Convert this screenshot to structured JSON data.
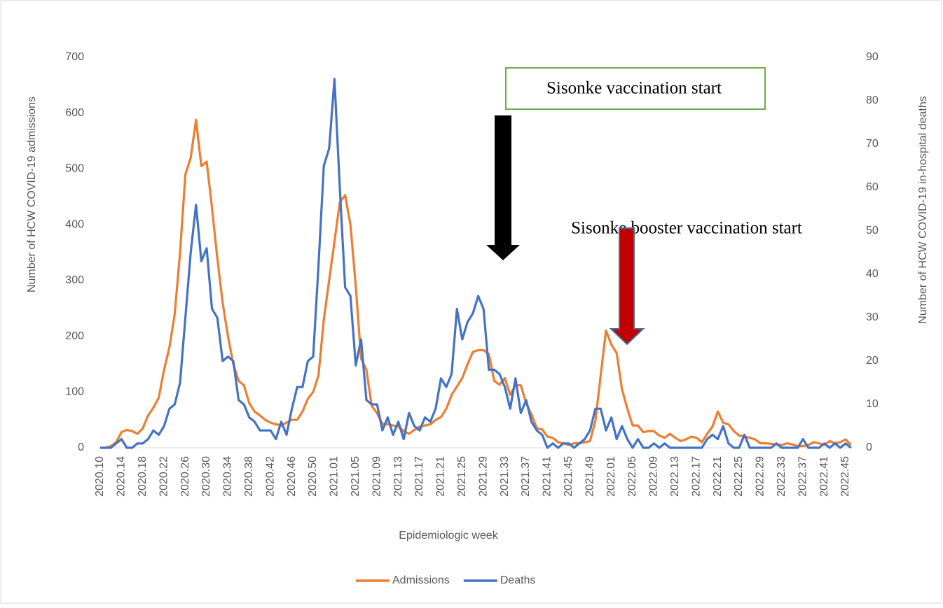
{
  "chart_data": {
    "type": "line",
    "y_label": "Number of HCW COVID-19 admissions",
    "y2_label": "Number of HCW COVID-19 in-hospital deaths",
    "x_label": "Epidemiologic week",
    "categories": [
      "2020.10",
      null,
      null,
      null,
      "2020.14",
      null,
      null,
      null,
      "2020.18",
      null,
      null,
      null,
      "2020.22",
      null,
      null,
      null,
      "2020.26",
      null,
      null,
      null,
      "2020.30",
      null,
      null,
      null,
      "2020.34",
      null,
      null,
      null,
      "2020.38",
      null,
      null,
      null,
      "2020.42",
      null,
      null,
      null,
      "2020.46",
      null,
      null,
      null,
      "2020.50",
      null,
      null,
      null,
      "2021.01",
      null,
      null,
      null,
      "2021.05",
      null,
      null,
      null,
      "2021.09",
      null,
      null,
      null,
      "2021.13",
      null,
      null,
      null,
      "2021.17",
      null,
      null,
      null,
      "2021.21",
      null,
      null,
      null,
      "2021.25",
      null,
      null,
      null,
      "2021.29",
      null,
      null,
      null,
      "2021.33",
      null,
      null,
      null,
      "2021.37",
      null,
      null,
      null,
      "2021.41",
      null,
      null,
      null,
      "2021.45",
      null,
      null,
      null,
      "2021.49",
      null,
      null,
      null,
      "2022.01",
      null,
      null,
      null,
      "2022.05",
      null,
      null,
      null,
      "2022.09",
      null,
      null,
      null,
      "2022.13",
      null,
      null,
      null,
      "2022.17",
      null,
      null,
      null,
      "2022.21",
      null,
      null,
      null,
      "2022.25",
      null,
      null,
      null,
      "2022.29",
      null,
      null,
      null,
      "2022.33",
      null,
      null,
      null,
      "2022.37",
      null,
      null,
      null,
      "2022.41",
      null,
      null,
      null,
      "2022.45",
      null
    ],
    "series": [
      {
        "name": "Admissions",
        "color": "#ed7d31",
        "axis": "y",
        "values": [
          0,
          0,
          3,
          10,
          28,
          32,
          30,
          25,
          35,
          58,
          72,
          90,
          140,
          180,
          240,
          350,
          490,
          520,
          588,
          505,
          513,
          430,
          340,
          260,
          200,
          150,
          120,
          112,
          80,
          65,
          58,
          50,
          45,
          42,
          40,
          45,
          50,
          50,
          65,
          88,
          100,
          130,
          230,
          300,
          370,
          440,
          453,
          400,
          290,
          160,
          140,
          75,
          62,
          43,
          42,
          40,
          38,
          30,
          25,
          32,
          38,
          40,
          42,
          50,
          55,
          70,
          95,
          110,
          125,
          150,
          172,
          175,
          175,
          168,
          120,
          113,
          125,
          95,
          112,
          112,
          80,
          60,
          35,
          33,
          20,
          18,
          10,
          8,
          5,
          8,
          8,
          10,
          12,
          48,
          130,
          210,
          185,
          170,
          105,
          70,
          40,
          40,
          28,
          30,
          30,
          22,
          18,
          25,
          18,
          12,
          15,
          20,
          18,
          10,
          25,
          38,
          65,
          45,
          42,
          30,
          22,
          20,
          18,
          15,
          8,
          8,
          7,
          6,
          5,
          8,
          6,
          3,
          3,
          5,
          10,
          8,
          5,
          12,
          8,
          10,
          15,
          5
        ]
      },
      {
        "name": "Deaths",
        "color": "#4472c4",
        "axis": "y2",
        "values": [
          0,
          0,
          0,
          1,
          2,
          0,
          0,
          1,
          1,
          2,
          4,
          3,
          5,
          9,
          10,
          15,
          30,
          45,
          56,
          43,
          46,
          32,
          30,
          20,
          21,
          20,
          11,
          10,
          7,
          6,
          4,
          4,
          4,
          2,
          6,
          3,
          9,
          14,
          14,
          20,
          21,
          42,
          65,
          69,
          85,
          60,
          37,
          35,
          19,
          25,
          11,
          10,
          10,
          4,
          7,
          3,
          6,
          2,
          8,
          5,
          4,
          7,
          6,
          9,
          16,
          14,
          17,
          32,
          25,
          29,
          31,
          35,
          32,
          18,
          18,
          17,
          14,
          9,
          16,
          8,
          11,
          6,
          4,
          3,
          0,
          1,
          0,
          1,
          1,
          0,
          1,
          2,
          4,
          9,
          9,
          4,
          7,
          2,
          5,
          2,
          0,
          2,
          0,
          0,
          1,
          0,
          1,
          0,
          0,
          0,
          0,
          0,
          0,
          0,
          2,
          3,
          2,
          5,
          1,
          0,
          0,
          3,
          0,
          0,
          0,
          0,
          0,
          1,
          0,
          0,
          0,
          0,
          2,
          0,
          0,
          0,
          1,
          0,
          1,
          0,
          1,
          0
        ]
      }
    ],
    "ylim": [
      0,
      700
    ],
    "yticks": [
      0,
      100,
      200,
      300,
      400,
      500,
      600,
      700
    ],
    "y2lim": [
      0,
      90
    ],
    "y2ticks": [
      0,
      10,
      20,
      30,
      40,
      50,
      60,
      70,
      80,
      90
    ],
    "annotations": [
      "Sisonke vaccination start",
      "Sisonke booster vaccination start"
    ],
    "legend": "bottom"
  }
}
